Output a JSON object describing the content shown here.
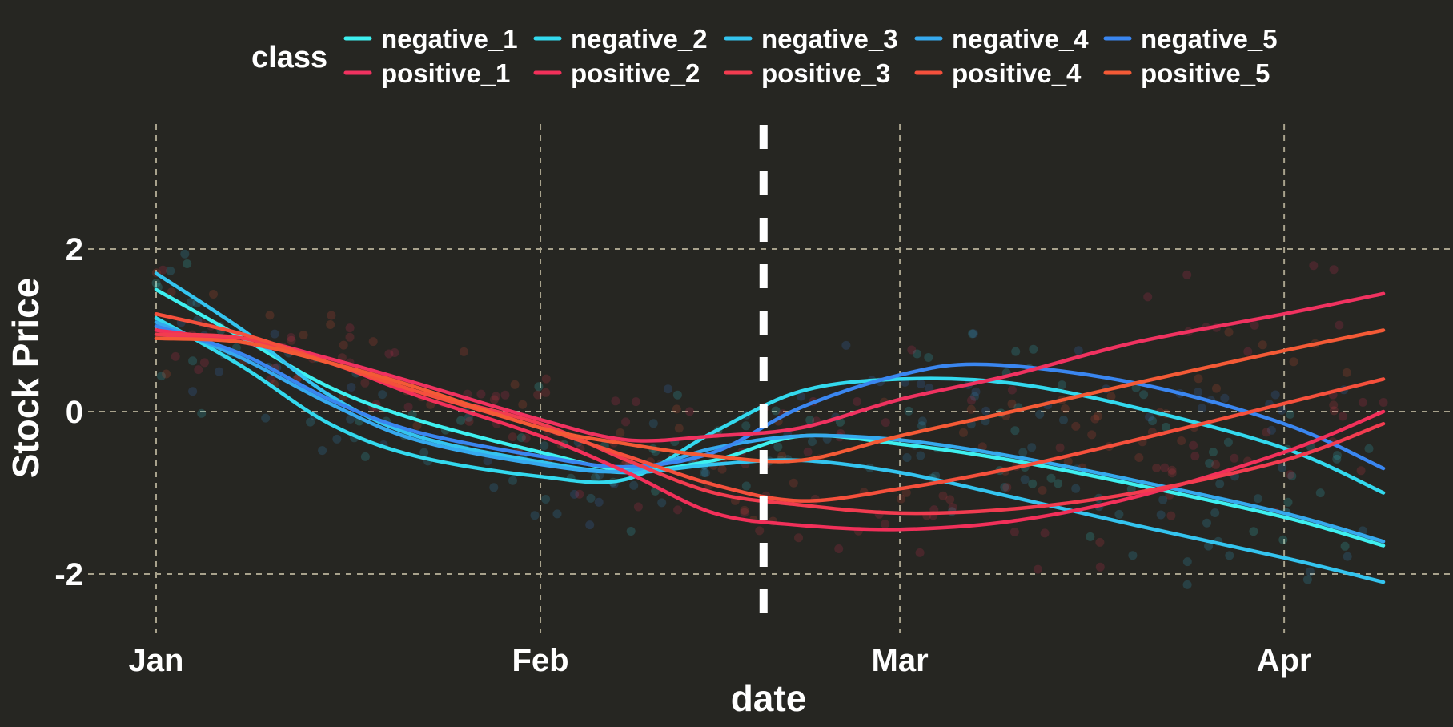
{
  "chart_data": {
    "type": "line",
    "xlabel": "date",
    "ylabel": "Stock Price",
    "x_ticks": [
      "Jan",
      "Feb",
      "Mar",
      "Apr"
    ],
    "x_tick_dates": [
      "2020-01-01",
      "2020-02-01",
      "2020-03-01",
      "2020-04-01"
    ],
    "x_range": [
      "2020-01-01",
      "2020-04-09"
    ],
    "y_ticks": [
      2,
      0,
      -2
    ],
    "ylim": [
      -2.8,
      3.6
    ],
    "grid": true,
    "event_line_date": "2020-02-19",
    "legend": {
      "title": "class",
      "position": "top"
    },
    "series": [
      {
        "name": "negative_1",
        "color": "#3ef0f0",
        "points": [
          [
            "2020-01-01",
            1.5
          ],
          [
            "2020-01-08",
            0.9
          ],
          [
            "2020-01-15",
            0.3
          ],
          [
            "2020-01-22",
            -0.1
          ],
          [
            "2020-02-01",
            -0.5
          ],
          [
            "2020-02-08",
            -0.72
          ],
          [
            "2020-02-15",
            -0.6
          ],
          [
            "2020-02-22",
            -0.3
          ],
          [
            "2020-03-01",
            -0.4
          ],
          [
            "2020-03-10",
            -0.6
          ],
          [
            "2020-03-20",
            -0.9
          ],
          [
            "2020-04-01",
            -1.3
          ],
          [
            "2020-04-09",
            -1.65
          ]
        ]
      },
      {
        "name": "negative_2",
        "color": "#33d9ee",
        "points": [
          [
            "2020-01-01",
            1.15
          ],
          [
            "2020-01-08",
            0.55
          ],
          [
            "2020-01-15",
            -0.15
          ],
          [
            "2020-01-22",
            -0.55
          ],
          [
            "2020-02-01",
            -0.8
          ],
          [
            "2020-02-08",
            -0.83
          ],
          [
            "2020-02-15",
            -0.25
          ],
          [
            "2020-02-22",
            0.25
          ],
          [
            "2020-03-01",
            0.4
          ],
          [
            "2020-03-10",
            0.35
          ],
          [
            "2020-03-20",
            0.05
          ],
          [
            "2020-04-01",
            -0.45
          ],
          [
            "2020-04-09",
            -1.0
          ]
        ]
      },
      {
        "name": "negative_3",
        "color": "#34c4ef",
        "points": [
          [
            "2020-01-01",
            1.7
          ],
          [
            "2020-01-08",
            1.0
          ],
          [
            "2020-01-15",
            0.2
          ],
          [
            "2020-01-22",
            -0.3
          ],
          [
            "2020-02-01",
            -0.62
          ],
          [
            "2020-02-08",
            -0.75
          ],
          [
            "2020-02-15",
            -0.65
          ],
          [
            "2020-02-22",
            -0.6
          ],
          [
            "2020-03-01",
            -0.75
          ],
          [
            "2020-03-10",
            -1.05
          ],
          [
            "2020-03-20",
            -1.4
          ],
          [
            "2020-04-01",
            -1.8
          ],
          [
            "2020-04-09",
            -2.1
          ]
        ]
      },
      {
        "name": "negative_4",
        "color": "#36a9ee",
        "points": [
          [
            "2020-01-01",
            1.1
          ],
          [
            "2020-01-08",
            0.65
          ],
          [
            "2020-01-15",
            0.1
          ],
          [
            "2020-01-22",
            -0.35
          ],
          [
            "2020-02-01",
            -0.65
          ],
          [
            "2020-02-08",
            -0.73
          ],
          [
            "2020-02-15",
            -0.45
          ],
          [
            "2020-02-22",
            -0.3
          ],
          [
            "2020-03-01",
            -0.35
          ],
          [
            "2020-03-10",
            -0.55
          ],
          [
            "2020-03-20",
            -0.85
          ],
          [
            "2020-04-01",
            -1.25
          ],
          [
            "2020-04-09",
            -1.6
          ]
        ]
      },
      {
        "name": "negative_5",
        "color": "#3a86f0",
        "points": [
          [
            "2020-01-01",
            1.05
          ],
          [
            "2020-01-08",
            0.7
          ],
          [
            "2020-01-15",
            0.15
          ],
          [
            "2020-01-22",
            -0.25
          ],
          [
            "2020-02-01",
            -0.55
          ],
          [
            "2020-02-08",
            -0.68
          ],
          [
            "2020-02-15",
            -0.5
          ],
          [
            "2020-02-22",
            0.05
          ],
          [
            "2020-03-01",
            0.45
          ],
          [
            "2020-03-08",
            0.58
          ],
          [
            "2020-03-20",
            0.35
          ],
          [
            "2020-04-01",
            -0.15
          ],
          [
            "2020-04-09",
            -0.7
          ]
        ]
      },
      {
        "name": "positive_1",
        "color": "#f03260",
        "points": [
          [
            "2020-01-01",
            0.9
          ],
          [
            "2020-01-08",
            0.9
          ],
          [
            "2020-01-15",
            0.65
          ],
          [
            "2020-01-22",
            0.35
          ],
          [
            "2020-02-01",
            -0.1
          ],
          [
            "2020-02-08",
            -0.35
          ],
          [
            "2020-02-15",
            -0.3
          ],
          [
            "2020-02-22",
            -0.2
          ],
          [
            "2020-03-01",
            0.15
          ],
          [
            "2020-03-10",
            0.45
          ],
          [
            "2020-03-20",
            0.85
          ],
          [
            "2020-04-01",
            1.2
          ],
          [
            "2020-04-09",
            1.45
          ]
        ]
      },
      {
        "name": "positive_2",
        "color": "#f2305a",
        "points": [
          [
            "2020-01-01",
            1.0
          ],
          [
            "2020-01-08",
            0.85
          ],
          [
            "2020-01-15",
            0.6
          ],
          [
            "2020-01-22",
            0.2
          ],
          [
            "2020-02-01",
            -0.3
          ],
          [
            "2020-02-08",
            -0.75
          ],
          [
            "2020-02-15",
            -1.25
          ],
          [
            "2020-02-22",
            -1.4
          ],
          [
            "2020-03-01",
            -1.45
          ],
          [
            "2020-03-10",
            -1.35
          ],
          [
            "2020-03-20",
            -1.05
          ],
          [
            "2020-04-01",
            -0.5
          ],
          [
            "2020-04-09",
            0.0
          ]
        ]
      },
      {
        "name": "positive_3",
        "color": "#f23c50",
        "points": [
          [
            "2020-01-01",
            0.95
          ],
          [
            "2020-01-08",
            0.9
          ],
          [
            "2020-01-15",
            0.6
          ],
          [
            "2020-01-22",
            0.25
          ],
          [
            "2020-02-01",
            -0.15
          ],
          [
            "2020-02-08",
            -0.6
          ],
          [
            "2020-02-15",
            -1.0
          ],
          [
            "2020-02-22",
            -1.15
          ],
          [
            "2020-03-01",
            -1.25
          ],
          [
            "2020-03-10",
            -1.2
          ],
          [
            "2020-03-20",
            -1.0
          ],
          [
            "2020-04-01",
            -0.6
          ],
          [
            "2020-04-09",
            -0.15
          ]
        ]
      },
      {
        "name": "positive_4",
        "color": "#f5503c",
        "points": [
          [
            "2020-01-01",
            1.2
          ],
          [
            "2020-01-08",
            0.95
          ],
          [
            "2020-01-15",
            0.6
          ],
          [
            "2020-01-22",
            0.25
          ],
          [
            "2020-02-01",
            -0.2
          ],
          [
            "2020-02-08",
            -0.55
          ],
          [
            "2020-02-15",
            -0.9
          ],
          [
            "2020-02-22",
            -1.1
          ],
          [
            "2020-03-01",
            -0.95
          ],
          [
            "2020-03-10",
            -0.7
          ],
          [
            "2020-03-20",
            -0.35
          ],
          [
            "2020-04-01",
            0.1
          ],
          [
            "2020-04-09",
            0.4
          ]
        ]
      },
      {
        "name": "positive_5",
        "color": "#f45a36",
        "points": [
          [
            "2020-01-01",
            0.9
          ],
          [
            "2020-01-08",
            0.85
          ],
          [
            "2020-01-15",
            0.6
          ],
          [
            "2020-01-22",
            0.3
          ],
          [
            "2020-02-01",
            -0.2
          ],
          [
            "2020-02-08",
            -0.4
          ],
          [
            "2020-02-15",
            -0.55
          ],
          [
            "2020-02-22",
            -0.6
          ],
          [
            "2020-03-01",
            -0.3
          ],
          [
            "2020-03-10",
            0.0
          ],
          [
            "2020-03-20",
            0.35
          ],
          [
            "2020-04-01",
            0.75
          ],
          [
            "2020-04-09",
            1.0
          ]
        ]
      }
    ]
  }
}
